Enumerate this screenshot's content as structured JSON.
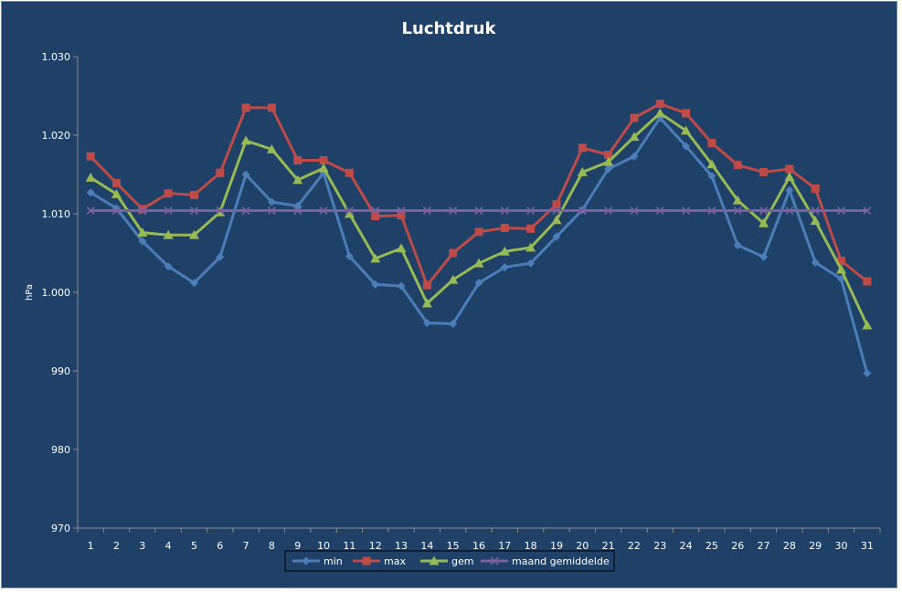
{
  "chart_data": {
    "type": "line",
    "title": "Luchtdruk",
    "xlabel": "",
    "ylabel": "hPa",
    "ylim": [
      970,
      1030
    ],
    "ytick_values": [
      970,
      980,
      990,
      1000,
      1010,
      1020,
      1030
    ],
    "ytick_labels": [
      "970",
      "980",
      "990",
      "1.000",
      "1.010",
      "1.020",
      "1.030"
    ],
    "categories": [
      "1",
      "2",
      "3",
      "4",
      "5",
      "6",
      "7",
      "8",
      "9",
      "10",
      "11",
      "12",
      "13",
      "14",
      "15",
      "16",
      "17",
      "18",
      "19",
      "20",
      "21",
      "22",
      "23",
      "24",
      "25",
      "26",
      "27",
      "28",
      "29",
      "30",
      "31"
    ],
    "grid": false,
    "legend_position": "bottom",
    "series": [
      {
        "name": "min",
        "color": "#4a7ebb",
        "marker": "diamond",
        "values": [
          1012.7,
          1010.7,
          1006.5,
          1003.3,
          1001.2,
          1004.5,
          1015.0,
          1011.5,
          1011.0,
          1015.2,
          1004.6,
          1001.0,
          1000.8,
          996.1,
          996.0,
          1001.2,
          1003.2,
          1003.7,
          1007.1,
          1010.5,
          1015.7,
          1017.3,
          1022.2,
          1018.6,
          1014.8,
          1006.0,
          1004.5,
          1013.0,
          1003.8,
          1001.7,
          989.7
        ]
      },
      {
        "name": "max",
        "color": "#be4b48",
        "marker": "square",
        "values": [
          1017.3,
          1013.9,
          1010.6,
          1012.6,
          1012.4,
          1015.2,
          1023.5,
          1023.5,
          1016.8,
          1016.8,
          1015.2,
          1009.7,
          1009.8,
          1000.9,
          1005.0,
          1007.7,
          1008.2,
          1008.1,
          1011.2,
          1018.4,
          1017.5,
          1022.2,
          1024.0,
          1022.8,
          1019.0,
          1016.2,
          1015.3,
          1015.7,
          1013.2,
          1004.0,
          1001.4
        ]
      },
      {
        "name": "gem",
        "color": "#98b954",
        "marker": "triangle",
        "values": [
          1014.6,
          1012.5,
          1007.6,
          1007.3,
          1007.3,
          1010.2,
          1019.3,
          1018.2,
          1014.3,
          1015.8,
          1010.0,
          1004.3,
          1005.6,
          998.6,
          1001.6,
          1003.7,
          1005.2,
          1005.7,
          1009.2,
          1015.3,
          1016.6,
          1019.8,
          1022.8,
          1020.6,
          1016.3,
          1011.7,
          1008.8,
          1014.7,
          1009.1,
          1002.9,
          995.8
        ]
      },
      {
        "name": "maand gemiddelde",
        "color": "#7d60a0",
        "marker": "x",
        "values": [
          1010.4,
          1010.4,
          1010.4,
          1010.4,
          1010.4,
          1010.4,
          1010.4,
          1010.4,
          1010.4,
          1010.4,
          1010.4,
          1010.4,
          1010.4,
          1010.4,
          1010.4,
          1010.4,
          1010.4,
          1010.4,
          1010.4,
          1010.4,
          1010.4,
          1010.4,
          1010.4,
          1010.4,
          1010.4,
          1010.4,
          1010.4,
          1010.4,
          1010.4,
          1010.4,
          1010.4
        ]
      }
    ]
  }
}
